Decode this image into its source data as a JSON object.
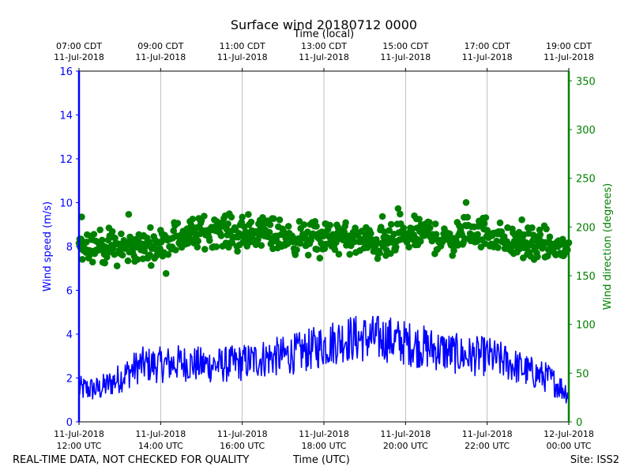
{
  "chart_data": {
    "type": "line",
    "title": "Surface wind 20180712 0000",
    "top_axis_title": "Time (local)",
    "bottom_axis_title": "Time (UTC)",
    "left_ylabel": "Wind speed (m/s)",
    "right_ylabel": "Wind direction (degrees)",
    "x_range_hours_utc": [
      12,
      24
    ],
    "left_ylim": [
      0,
      16
    ],
    "right_ylim": [
      0,
      360
    ],
    "left_yticks": [
      "0",
      "2",
      "4",
      "6",
      "8",
      "10",
      "12",
      "14",
      "16"
    ],
    "right_yticks": [
      "0",
      "50",
      "100",
      "150",
      "200",
      "250",
      "300",
      "350"
    ],
    "bottom_ticks": [
      {
        "hour": 12,
        "line1": "11-Jul-2018",
        "line2": "12:00 UTC"
      },
      {
        "hour": 14,
        "line1": "11-Jul-2018",
        "line2": "14:00 UTC"
      },
      {
        "hour": 16,
        "line1": "11-Jul-2018",
        "line2": "16:00 UTC"
      },
      {
        "hour": 18,
        "line1": "11-Jul-2018",
        "line2": "18:00 UTC"
      },
      {
        "hour": 20,
        "line1": "11-Jul-2018",
        "line2": "20:00 UTC"
      },
      {
        "hour": 22,
        "line1": "11-Jul-2018",
        "line2": "22:00 UTC"
      },
      {
        "hour": 24,
        "line1": "12-Jul-2018",
        "line2": "00:00 UTC"
      }
    ],
    "top_ticks": [
      {
        "hour": 12,
        "line1": "07:00 CDT",
        "line2": "11-Jul-2018"
      },
      {
        "hour": 14,
        "line1": "09:00 CDT",
        "line2": "11-Jul-2018"
      },
      {
        "hour": 16,
        "line1": "11:00 CDT",
        "line2": "11-Jul-2018"
      },
      {
        "hour": 18,
        "line1": "13:00 CDT",
        "line2": "11-Jul-2018"
      },
      {
        "hour": 20,
        "line1": "15:00 CDT",
        "line2": "11-Jul-2018"
      },
      {
        "hour": 22,
        "line1": "17:00 CDT",
        "line2": "11-Jul-2018"
      },
      {
        "hour": 24,
        "line1": "19:00 CDT",
        "line2": "11-Jul-2018"
      }
    ],
    "series": [
      {
        "name": "Wind speed (m/s)",
        "axis": "left",
        "style": "line",
        "color": "#0000ff",
        "x_hours": [
          12.0,
          12.5,
          13.0,
          13.5,
          14.0,
          14.5,
          15.0,
          15.5,
          16.0,
          16.5,
          17.0,
          17.5,
          18.0,
          18.5,
          19.0,
          19.5,
          20.0,
          20.5,
          21.0,
          21.5,
          22.0,
          22.5,
          23.0,
          23.5,
          24.0
        ],
        "values": [
          1.5,
          1.5,
          2.0,
          2.6,
          2.6,
          2.7,
          2.6,
          2.6,
          2.7,
          2.9,
          3.0,
          3.2,
          3.5,
          3.8,
          3.8,
          3.8,
          3.6,
          3.4,
          3.2,
          3.0,
          3.0,
          2.7,
          2.3,
          2.0,
          1.3
        ]
      },
      {
        "name": "Wind direction (degrees)",
        "axis": "right",
        "style": "scatter",
        "color": "#008000",
        "x_hours": [
          12.0,
          12.5,
          13.0,
          13.5,
          14.0,
          14.5,
          15.0,
          15.5,
          16.0,
          16.5,
          17.0,
          17.5,
          18.0,
          18.5,
          19.0,
          19.5,
          20.0,
          20.5,
          21.0,
          21.5,
          22.0,
          22.5,
          23.0,
          23.5,
          24.0
        ],
        "values": [
          185,
          180,
          178,
          180,
          182,
          190,
          195,
          198,
          190,
          195,
          190,
          188,
          190,
          188,
          185,
          182,
          190,
          195,
          185,
          195,
          195,
          185,
          182,
          180,
          178
        ]
      }
    ]
  },
  "footer": {
    "left": "REAL-TIME DATA, NOT CHECKED FOR QUALITY",
    "center": "Time (UTC)",
    "right": "Site: ISS2"
  }
}
